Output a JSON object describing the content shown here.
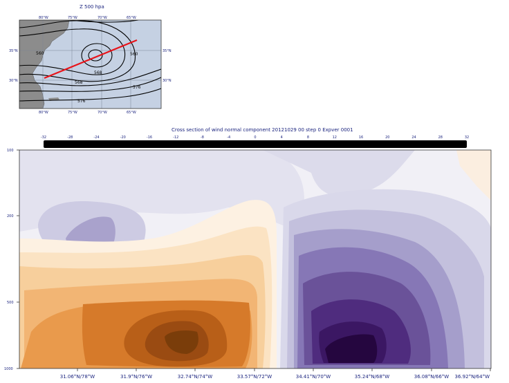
{
  "map_title": "Z 500 hpa",
  "map": {
    "lon_labels": [
      "80°W",
      "75°W",
      "70°W",
      "65°W"
    ],
    "lat_labels": [
      "35°N",
      "30°N"
    ],
    "contour_labels": [
      "560",
      "568",
      "560",
      "568",
      "576",
      "576"
    ]
  },
  "section_title": "Cross section of wind normal component 20121029 00 step 0 Expver 0001",
  "colors": {
    "text": "#1a237e",
    "map_ocean": "#c5d1e3",
    "map_land": "#8c8c8c",
    "section_line": "#e8141a",
    "positive_strong": "#7a3d0a",
    "positive_weak": "#fbe7cc",
    "negative_strong": "#25063f",
    "negative_weak": "#e3e2ef"
  },
  "chart_data": {
    "type": "heatmap",
    "title": "Cross section of wind normal component 20121029 00 step 0 Expver 0001",
    "colorbar_ticks": [
      "-32",
      "-28",
      "-24",
      "-20",
      "-16",
      "-12",
      "-8",
      "-4",
      "0",
      "4",
      "8",
      "12",
      "16",
      "20",
      "24",
      "28",
      "32"
    ],
    "x_tick_labels": [
      "31.06°N/78°W",
      "31.9°N/76°W",
      "32.74°N/74°W",
      "33.57°N/72°W",
      "34.41°N/70°W",
      "35.24°N/68°W",
      "36.08°N/66°W",
      "36.92°N/64°W"
    ],
    "y_tick_labels": [
      "100",
      "200",
      "500",
      "1000"
    ],
    "ylim": [
      1000,
      100
    ],
    "features": [
      {
        "name": "positive core",
        "position": "31.9°N/76°W - 33.57°N/72°W",
        "level": 850,
        "approx_value": 20
      },
      {
        "name": "negative core",
        "position": "35.24°N/68°W",
        "level": 900,
        "approx_value": -32
      },
      {
        "name": "upper negative pocket",
        "position": "31.9°N/76°W",
        "level": 250,
        "approx_value": -12
      }
    ]
  }
}
